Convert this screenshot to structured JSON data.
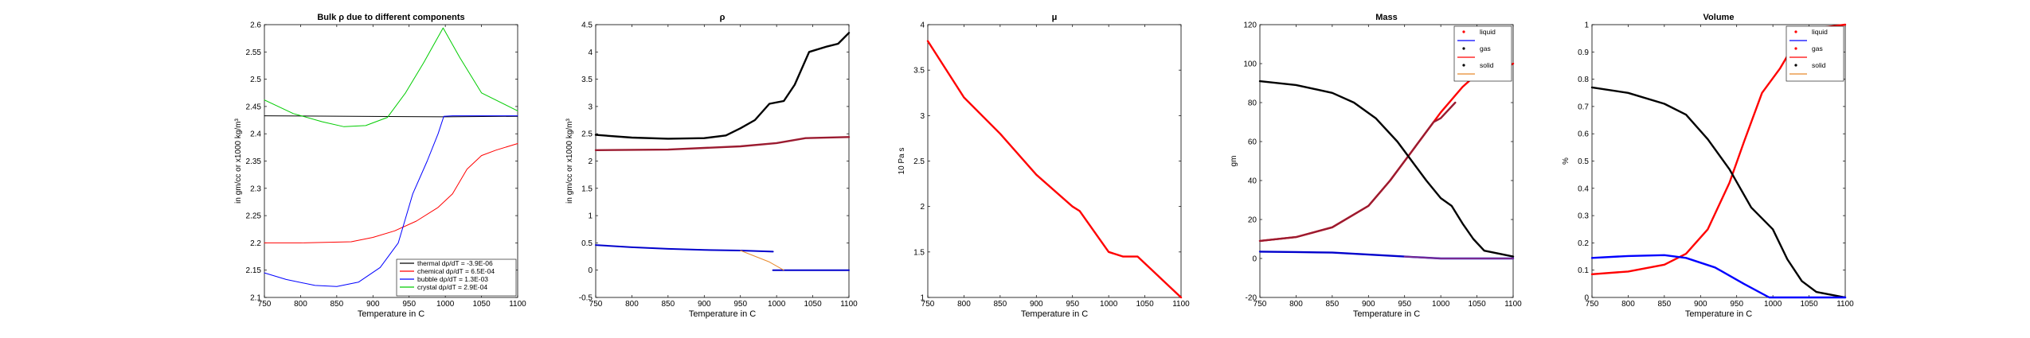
{
  "chart_data": [
    {
      "type": "line",
      "title": "Bulk ρ due to different components",
      "xlabel": "Temperature in C",
      "ylabel": "in gm/cc or x1000 kg/m³",
      "xlim": [
        750,
        1100
      ],
      "ylim": [
        2.1,
        2.6
      ],
      "xticks": [
        750,
        800,
        850,
        900,
        950,
        1000,
        1050,
        1100
      ],
      "yticks": [
        2.1,
        2.15,
        2.2,
        2.25,
        2.3,
        2.35,
        2.4,
        2.45,
        2.5,
        2.55,
        2.6
      ],
      "ytick_labels": [
        "2.1",
        "2.15",
        "2.2",
        "2.25",
        "2.3",
        "2.35",
        "2.4",
        "2.45",
        "2.5",
        "2.55",
        "2.6"
      ],
      "legend_position": "bottom-right",
      "series": [
        {
          "name": "thermal dρ/dT = -3.9E-06",
          "color": "#000000",
          "width": 1,
          "points": [
            [
              750,
              2.433
            ],
            [
              1000,
              2.431
            ],
            [
              1100,
              2.432
            ]
          ]
        },
        {
          "name": "chemical dρ/dT = 6.5E-04",
          "color": "#ff0000",
          "width": 1,
          "points": [
            [
              750,
              2.2
            ],
            [
              800,
              2.2
            ],
            [
              870,
              2.202
            ],
            [
              900,
              2.21
            ],
            [
              930,
              2.222
            ],
            [
              960,
              2.24
            ],
            [
              990,
              2.265
            ],
            [
              1010,
              2.29
            ],
            [
              1030,
              2.335
            ],
            [
              1050,
              2.36
            ],
            [
              1070,
              2.37
            ],
            [
              1100,
              2.382
            ]
          ]
        },
        {
          "name": "bubble dρ/dT = 1.3E-03",
          "color": "#0000ff",
          "width": 1,
          "points": [
            [
              750,
              2.145
            ],
            [
              780,
              2.133
            ],
            [
              820,
              2.122
            ],
            [
              850,
              2.12
            ],
            [
              880,
              2.128
            ],
            [
              910,
              2.155
            ],
            [
              935,
              2.2
            ],
            [
              955,
              2.29
            ],
            [
              975,
              2.35
            ],
            [
              990,
              2.4
            ],
            [
              998,
              2.432
            ],
            [
              1010,
              2.433
            ],
            [
              1100,
              2.433
            ]
          ]
        },
        {
          "name": "crystal dρ/dT = 2.9E-04",
          "color": "#00cc00",
          "width": 1,
          "points": [
            [
              750,
              2.462
            ],
            [
              790,
              2.437
            ],
            [
              830,
              2.422
            ],
            [
              860,
              2.413
            ],
            [
              890,
              2.415
            ],
            [
              920,
              2.43
            ],
            [
              945,
              2.475
            ],
            [
              970,
              2.53
            ],
            [
              997,
              2.594
            ],
            [
              1020,
              2.54
            ],
            [
              1050,
              2.475
            ],
            [
              1100,
              2.442
            ]
          ]
        }
      ]
    },
    {
      "type": "line",
      "title": "ρ",
      "xlabel": "Temperature in C",
      "ylabel": "in gm/cc or x1000 kg/m³",
      "xlim": [
        750,
        1100
      ],
      "ylim": [
        -0.5,
        4.5
      ],
      "xticks": [
        750,
        800,
        850,
        900,
        950,
        1000,
        1050,
        1100
      ],
      "yticks": [
        -0.5,
        0,
        0.5,
        1,
        1.5,
        2,
        2.5,
        3,
        3.5,
        4,
        4.5
      ],
      "ytick_labels": [
        "-0.5",
        "0",
        "0.5",
        "1",
        "1.5",
        "2",
        "2.5",
        "3",
        "3.5",
        "4",
        "4.5"
      ],
      "series": [
        {
          "color": "#000000",
          "width": 2.4,
          "points": [
            [
              750,
              2.48
            ],
            [
              800,
              2.43
            ],
            [
              850,
              2.41
            ],
            [
              900,
              2.42
            ],
            [
              930,
              2.47
            ],
            [
              950,
              2.6
            ],
            [
              970,
              2.75
            ],
            [
              990,
              3.05
            ],
            [
              1010,
              3.1
            ],
            [
              1025,
              3.4
            ],
            [
              1045,
              4.0
            ],
            [
              1070,
              4.1
            ],
            [
              1085,
              4.15
            ],
            [
              1100,
              4.35
            ]
          ]
        },
        {
          "color": "#9b1b30",
          "width": 2.4,
          "points": [
            [
              750,
              2.2
            ],
            [
              850,
              2.21
            ],
            [
              900,
              2.24
            ],
            [
              950,
              2.27
            ],
            [
              1000,
              2.33
            ],
            [
              1040,
              2.42
            ],
            [
              1100,
              2.44
            ]
          ]
        },
        {
          "color": "#0000cc",
          "width": 2,
          "points": [
            [
              750,
              0.46
            ],
            [
              800,
              0.42
            ],
            [
              850,
              0.39
            ],
            [
              900,
              0.37
            ],
            [
              950,
              0.36
            ],
            [
              995,
              0.34
            ]
          ]
        },
        {
          "color": "#0000cc",
          "width": 2,
          "points": [
            [
              995,
              0.0
            ],
            [
              1100,
              0.0
            ]
          ]
        },
        {
          "color": "#e8892b",
          "width": 1,
          "points": [
            [
              950,
              0.36
            ],
            [
              990,
              0.15
            ],
            [
              1010,
              0.0
            ]
          ]
        }
      ]
    },
    {
      "type": "line",
      "title": "μ",
      "xlabel": "Temperature in C",
      "ylabel": "10 Pa s",
      "xlim": [
        750,
        1100
      ],
      "ylim": [
        1,
        4
      ],
      "xticks": [
        750,
        800,
        850,
        900,
        950,
        1000,
        1050,
        1100
      ],
      "yticks": [
        1,
        1.5,
        2,
        2.5,
        3,
        3.5,
        4
      ],
      "ytick_labels": [
        "1",
        "1.5",
        "2",
        "2.5",
        "3",
        "3.5",
        "4"
      ],
      "series": [
        {
          "color": "#ff0000",
          "width": 2.4,
          "points": [
            [
              750,
              3.82
            ],
            [
              800,
              3.2
            ],
            [
              850,
              2.8
            ],
            [
              900,
              2.35
            ],
            [
              950,
              2.0
            ],
            [
              960,
              1.95
            ],
            [
              1000,
              1.5
            ],
            [
              1020,
              1.45
            ],
            [
              1040,
              1.45
            ],
            [
              1060,
              1.3
            ],
            [
              1080,
              1.15
            ],
            [
              1100,
              1.0
            ]
          ]
        }
      ]
    },
    {
      "type": "line",
      "title": "Mass",
      "xlabel": "Temperature in C",
      "ylabel": "gm",
      "xlim": [
        750,
        1100
      ],
      "ylim": [
        -20,
        120
      ],
      "xticks": [
        750,
        800,
        850,
        900,
        950,
        1000,
        1050,
        1100
      ],
      "yticks": [
        -20,
        0,
        20,
        40,
        60,
        80,
        100,
        120
      ],
      "ytick_labels": [
        "-20",
        "0",
        "20",
        "40",
        "60",
        "80",
        "100",
        "120"
      ],
      "legend_position": "top-right",
      "series": [
        {
          "name": "liquid",
          "color": "#ff0000",
          "width": 2.4,
          "points": [
            [
              750,
              9
            ],
            [
              800,
              11
            ],
            [
              850,
              16
            ],
            [
              900,
              27
            ],
            [
              930,
              40
            ],
            [
              960,
              55
            ],
            [
              1000,
              75
            ],
            [
              1030,
              88
            ],
            [
              1060,
              98
            ],
            [
              1080,
              100
            ],
            [
              1090,
              98
            ],
            [
              1100,
              100
            ]
          ]
        },
        {
          "color": "#9b1b30",
          "width": 2.4,
          "points": [
            [
              750,
              9
            ],
            [
              800,
              11
            ],
            [
              850,
              16
            ],
            [
              900,
              27
            ],
            [
              930,
              40
            ],
            [
              960,
              55
            ],
            [
              990,
              70
            ],
            [
              1000,
              72
            ],
            [
              1020,
              80
            ]
          ]
        },
        {
          "name": "gas",
          "color": "#000000",
          "width": 2.4,
          "points": [
            [
              750,
              91
            ],
            [
              800,
              89
            ],
            [
              850,
              85
            ],
            [
              880,
              80
            ],
            [
              910,
              72
            ],
            [
              940,
              60
            ],
            [
              960,
              50
            ],
            [
              980,
              40
            ],
            [
              1000,
              31
            ],
            [
              1015,
              27
            ],
            [
              1030,
              18
            ],
            [
              1045,
              10
            ],
            [
              1060,
              4
            ],
            [
              1100,
              1
            ]
          ]
        },
        {
          "name": "solid",
          "color": "#0000cc",
          "width": 2.4,
          "points": [
            [
              750,
              3.5
            ],
            [
              800,
              3.3
            ],
            [
              850,
              3
            ],
            [
              900,
              2
            ],
            [
              950,
              1
            ],
            [
              1000,
              0
            ],
            [
              1100,
              0
            ]
          ]
        },
        {
          "color": "#7a2a90",
          "width": 2,
          "points": [
            [
              950,
              1
            ],
            [
              1000,
              0
            ],
            [
              1100,
              0
            ]
          ]
        }
      ],
      "legend_entries": [
        {
          "label": "liquid",
          "marker_color": "#ff0000",
          "line_color": "#0000ff"
        },
        {
          "label": "gas",
          "marker_color": "#000000",
          "line_color": "#ff0000"
        },
        {
          "label": "solid",
          "marker_color": "#000000",
          "line_color": "#e8892b"
        }
      ]
    },
    {
      "type": "line",
      "title": "Volume",
      "xlabel": "Temperature in C",
      "ylabel": "%",
      "xlim": [
        750,
        1100
      ],
      "ylim": [
        0,
        1
      ],
      "xticks": [
        750,
        800,
        850,
        900,
        950,
        1000,
        1050,
        1100
      ],
      "yticks": [
        0,
        0.1,
        0.2,
        0.3,
        0.4,
        0.5,
        0.6,
        0.7,
        0.8,
        0.9,
        1
      ],
      "ytick_labels": [
        "0",
        "0.1",
        "0.2",
        "0.3",
        "0.4",
        "0.5",
        "0.6",
        "0.7",
        "0.8",
        "0.9",
        "1"
      ],
      "legend_position": "top-right",
      "series": [
        {
          "name": "liquid",
          "color": "#ff0000",
          "width": 2.4,
          "points": [
            [
              750,
              0.085
            ],
            [
              800,
              0.095
            ],
            [
              850,
              0.12
            ],
            [
              880,
              0.16
            ],
            [
              910,
              0.25
            ],
            [
              940,
              0.42
            ],
            [
              960,
              0.57
            ],
            [
              985,
              0.75
            ],
            [
              1010,
              0.84
            ],
            [
              1030,
              0.93
            ],
            [
              1050,
              0.975
            ],
            [
              1070,
              0.99
            ],
            [
              1100,
              1.0
            ]
          ]
        },
        {
          "name": "gas",
          "color": "#000000",
          "width": 2.4,
          "points": [
            [
              750,
              0.77
            ],
            [
              800,
              0.75
            ],
            [
              850,
              0.71
            ],
            [
              880,
              0.67
            ],
            [
              910,
              0.58
            ],
            [
              940,
              0.47
            ],
            [
              970,
              0.33
            ],
            [
              1000,
              0.25
            ],
            [
              1020,
              0.14
            ],
            [
              1040,
              0.06
            ],
            [
              1060,
              0.02
            ],
            [
              1100,
              0.0
            ]
          ]
        },
        {
          "name": "solid",
          "color": "#0000ff",
          "width": 2.4,
          "points": [
            [
              750,
              0.145
            ],
            [
              800,
              0.152
            ],
            [
              850,
              0.155
            ],
            [
              880,
              0.145
            ],
            [
              920,
              0.11
            ],
            [
              960,
              0.05
            ],
            [
              995,
              0.0
            ],
            [
              1100,
              0.0
            ]
          ]
        }
      ],
      "legend_entries": [
        {
          "label": "liquid",
          "marker_color": "#ff0000",
          "line_color": "#0000ff"
        },
        {
          "label": "gas",
          "marker_color": "#ff0000",
          "line_color": "#ff0000"
        },
        {
          "label": "solid",
          "marker_color": "#000000",
          "line_color": "#e8892b"
        }
      ]
    }
  ]
}
